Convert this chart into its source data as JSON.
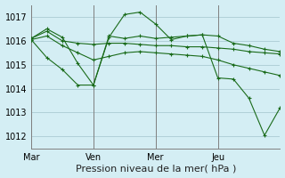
{
  "background_color": "#d4eef4",
  "grid_color": "#b0d0d8",
  "line_color": "#1a6b1a",
  "title": "Pression niveau de la mer( hPa )",
  "ylabel_ticks": [
    1012,
    1013,
    1014,
    1015,
    1016,
    1017
  ],
  "xlim": [
    0,
    96
  ],
  "ylim": [
    1011.5,
    1017.5
  ],
  "day_ticks": [
    0,
    24,
    48,
    72,
    96
  ],
  "day_labels": [
    "Mar",
    "Ven",
    "Mer",
    "Jeu",
    ""
  ],
  "series": [
    [
      0,
      1016.1,
      6,
      1016.4,
      12,
      1016.0,
      18,
      1015.9,
      24,
      1015.85,
      30,
      1015.9,
      36,
      1015.9,
      42,
      1015.85,
      48,
      1015.8,
      54,
      1015.8,
      60,
      1015.75,
      66,
      1015.75,
      72,
      1015.7,
      78,
      1015.65,
      84,
      1015.55,
      90,
      1015.5,
      96,
      1015.45
    ],
    [
      0,
      1016.05,
      6,
      1016.2,
      12,
      1015.8,
      18,
      1015.5,
      24,
      1015.2,
      30,
      1015.35,
      36,
      1015.5,
      42,
      1015.55,
      48,
      1015.5,
      54,
      1015.45,
      60,
      1015.4,
      66,
      1015.35,
      72,
      1015.2,
      78,
      1015.0,
      84,
      1014.85,
      90,
      1014.7,
      96,
      1014.55
    ],
    [
      0,
      1016.1,
      6,
      1016.5,
      12,
      1016.15,
      18,
      1015.05,
      24,
      1014.15,
      30,
      1016.15,
      36,
      1017.1,
      42,
      1017.2,
      48,
      1016.7,
      54,
      1016.05,
      60,
      1016.2,
      66,
      1016.25,
      72,
      1016.2,
      78,
      1015.9,
      84,
      1015.8,
      90,
      1015.65,
      96,
      1015.55
    ],
    [
      0,
      1016.05,
      6,
      1015.3,
      12,
      1014.8,
      18,
      1014.15,
      24,
      1014.15,
      30,
      1016.2,
      36,
      1016.1,
      42,
      1016.2,
      48,
      1016.1,
      54,
      1016.15,
      60,
      1016.2,
      66,
      1016.25,
      72,
      1014.45,
      78,
      1014.4,
      84,
      1013.6,
      90,
      1012.05,
      96,
      1013.2
    ]
  ]
}
